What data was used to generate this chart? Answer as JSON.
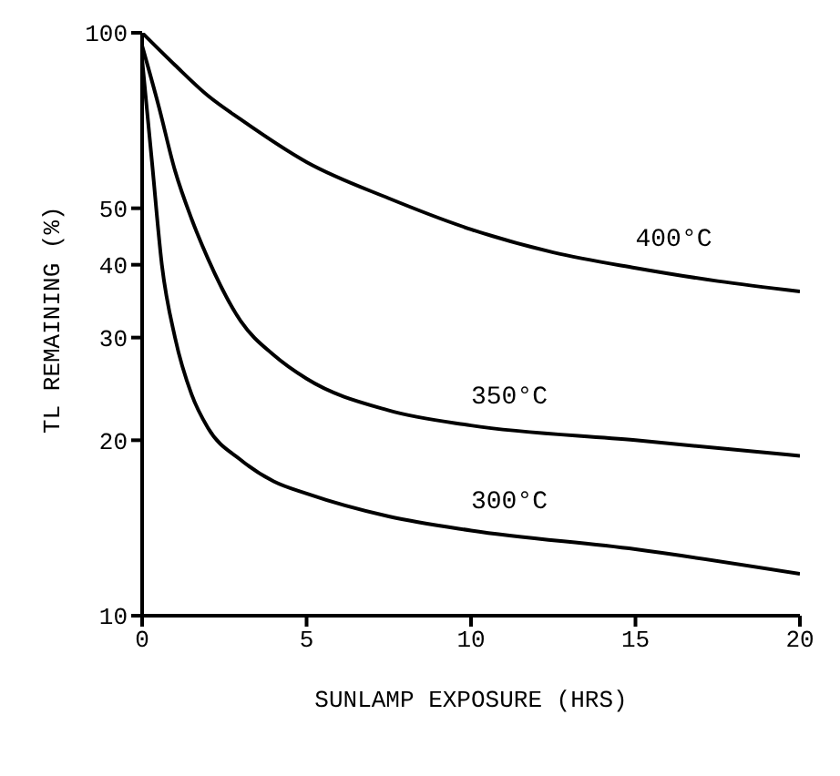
{
  "chart_data": {
    "type": "line",
    "xlabel": "SUNLAMP EXPOSURE (HRS)",
    "ylabel": "TL REMAINING (%)",
    "log": true,
    "xlim": [
      0,
      20
    ],
    "xticks": [
      0,
      5,
      10,
      15,
      20
    ],
    "ylim": [
      10,
      100
    ],
    "yticks": [
      10,
      20,
      30,
      40,
      50,
      100
    ],
    "marker": "none",
    "line_style": "solid",
    "series": [
      {
        "name": "400°C",
        "color": "#000000",
        "x": [
          0,
          1,
          2,
          3,
          5,
          7.5,
          10,
          12.5,
          15,
          17.5,
          20
        ],
        "values": [
          100,
          88,
          78,
          71,
          60,
          52,
          46,
          42,
          39.5,
          37.5,
          36
        ]
      },
      {
        "name": "350°C",
        "color": "#000000",
        "x": [
          0,
          0.5,
          1,
          1.5,
          2,
          3,
          4,
          5,
          7.5,
          10,
          15,
          20
        ],
        "values": [
          95,
          75,
          58,
          48,
          41,
          32,
          28,
          25.5,
          22.5,
          21.2,
          20,
          18.8
        ]
      },
      {
        "name": "300°C",
        "color": "#000000",
        "x": [
          0,
          0.3,
          0.6,
          1,
          1.5,
          2,
          3,
          4,
          5,
          7.5,
          10,
          15,
          20
        ],
        "values": [
          90,
          60,
          40,
          30,
          24,
          21,
          18.5,
          17,
          16.2,
          14.8,
          14,
          13,
          11.8
        ]
      }
    ]
  }
}
